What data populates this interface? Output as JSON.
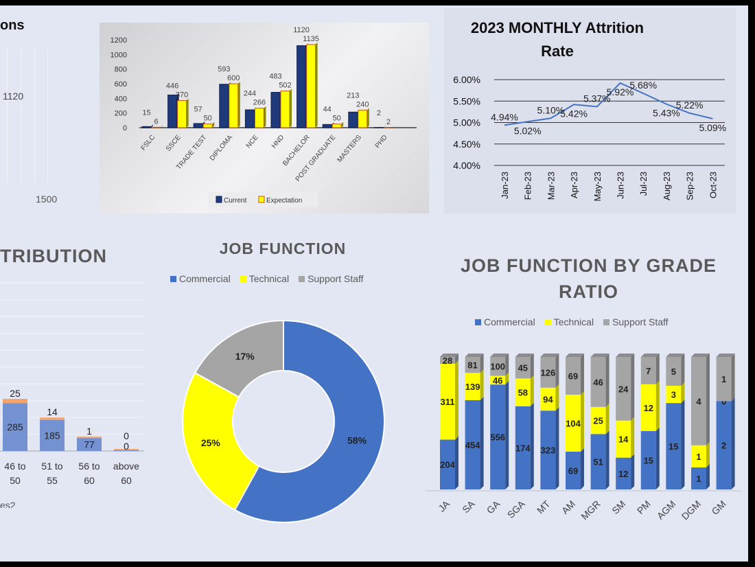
{
  "top_left_partial": {
    "title_fragment": "ons",
    "labels": [
      "1120",
      "1500"
    ]
  },
  "chart_data": [
    {
      "type": "bar",
      "title": "",
      "categories": [
        "FSLC",
        "SSCE",
        "TRADE TEST",
        "DIPLOMA",
        "NCE",
        "HND",
        "BACHELOR",
        "POST GRADUATE",
        "MASTERS",
        "PHD"
      ],
      "series": [
        {
          "name": "Current",
          "values": [
            15,
            446,
            57,
            593,
            244,
            483,
            1120,
            44,
            213,
            2
          ],
          "color": "#1f3a7a"
        },
        {
          "name": "Expectation",
          "values": [
            6,
            370,
            50,
            600,
            266,
            502,
            1135,
            50,
            240,
            2
          ],
          "color": "#ffff00"
        }
      ],
      "yticks": [
        "0",
        "200",
        "400",
        "600",
        "800",
        "1000",
        "1200"
      ],
      "ylim": [
        0,
        1200
      ],
      "legend": "bottom"
    },
    {
      "type": "line",
      "title": "2023 MONTHLY Attrition Rate",
      "title_lines": [
        "2023 MONTHLY Attrition",
        "Rate"
      ],
      "categories": [
        "Jan-23",
        "Feb-23",
        "Mar-23",
        "Apr-23",
        "May-23",
        "Jun-23",
        "Jul-23",
        "Aug-23",
        "Sep-23",
        "Oct-23"
      ],
      "values": [
        4.94,
        5.02,
        5.1,
        5.42,
        5.37,
        5.92,
        5.68,
        5.43,
        5.22,
        5.09
      ],
      "labels": [
        "4.94%",
        "5.02%",
        "5.10%",
        "5.42%",
        "5.37%",
        "5.92%",
        "5.68%",
        "5.43%",
        "5.22%",
        "5.09%"
      ],
      "yticks": [
        "4.00%",
        "4.50%",
        "5.00%",
        "5.50%",
        "6.00%"
      ],
      "ylim": [
        4.0,
        6.0
      ],
      "color": "#4472c4"
    },
    {
      "type": "bar",
      "stacked": true,
      "title_fragment": "TRIBUTION",
      "categories": [
        [
          "46 to",
          "50"
        ],
        [
          "51 to",
          "55"
        ],
        [
          "56 to",
          "60"
        ],
        [
          "above",
          "60"
        ]
      ],
      "series": [
        {
          "values": [
            285,
            185,
            77,
            0
          ],
          "color": "#7491d2"
        },
        {
          "values": [
            25,
            14,
            1,
            0
          ],
          "color": "#f4a46a"
        }
      ],
      "legend_fragment": "es2",
      "ylim": [
        0,
        1000
      ]
    },
    {
      "type": "pie",
      "title": "JOB FUNCTION",
      "categories": [
        "Commercial",
        "Technical",
        "Support Staff"
      ],
      "values": [
        58,
        25,
        17
      ],
      "labels": [
        "58%",
        "25%",
        "17%"
      ],
      "colors": [
        "#4472c4",
        "#ffff00",
        "#a5a5a5"
      ],
      "legend": "top"
    },
    {
      "type": "bar",
      "stacked": true,
      "percent": true,
      "title_lines": [
        "JOB FUNCTION BY GRADE",
        "RATIO"
      ],
      "categories": [
        "JA",
        "SA",
        "GA",
        "SGA",
        "MT",
        "AM",
        "MGR",
        "SM",
        "PM",
        "AGM",
        "DGM",
        "GM"
      ],
      "series": [
        {
          "name": "Commercial",
          "values": [
            204,
            454,
            556,
            174,
            323,
            69,
            51,
            12,
            15,
            15,
            1,
            2
          ],
          "color": "#4472c4"
        },
        {
          "name": "Technical",
          "values": [
            311,
            139,
            46,
            58,
            94,
            104,
            25,
            14,
            12,
            3,
            1,
            0
          ],
          "color": "#ffff00"
        },
        {
          "name": "Support Staff",
          "values": [
            28,
            81,
            100,
            45,
            126,
            69,
            46,
            24,
            7,
            5,
            4,
            1
          ],
          "color": "#a5a5a5"
        }
      ],
      "legend": "top"
    }
  ]
}
